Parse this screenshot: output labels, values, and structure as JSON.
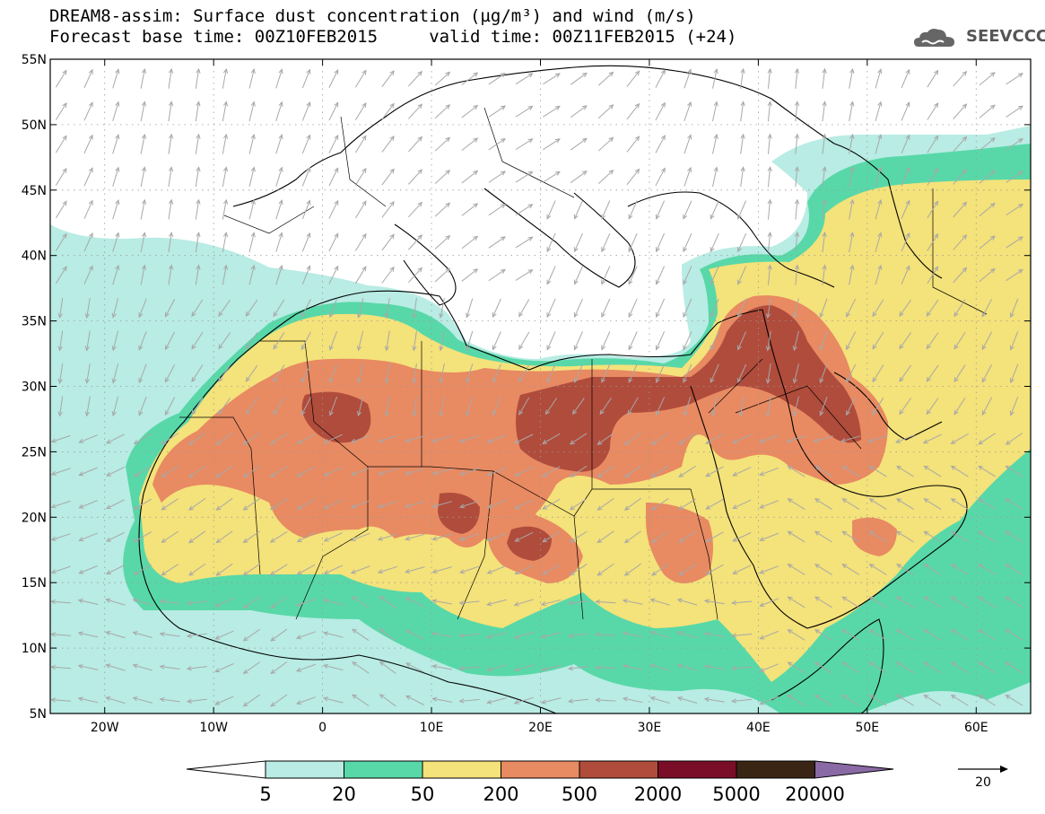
{
  "header": {
    "title_line1": "DREAM8-assim: Surface dust concentration (µg/m³) and wind (m/s)",
    "title_line2": "Forecast base time: 00Z10FEB2015     valid time: 00Z11FEB2015 (+24)",
    "logo_text": "SEEVCCC"
  },
  "map": {
    "lon_range": [
      -25,
      65
    ],
    "lat_range": [
      5,
      55
    ],
    "lon_ticks": [
      {
        "value": -20,
        "label": "20W"
      },
      {
        "value": -10,
        "label": "10W"
      },
      {
        "value": 0,
        "label": "0"
      },
      {
        "value": 10,
        "label": "10E"
      },
      {
        "value": 20,
        "label": "20E"
      },
      {
        "value": 30,
        "label": "30E"
      },
      {
        "value": 40,
        "label": "40E"
      },
      {
        "value": 50,
        "label": "50E"
      },
      {
        "value": 60,
        "label": "60E"
      }
    ],
    "lat_ticks": [
      {
        "value": 55,
        "label": "55N"
      },
      {
        "value": 50,
        "label": "50N"
      },
      {
        "value": 45,
        "label": "45N"
      },
      {
        "value": 40,
        "label": "40N"
      },
      {
        "value": 35,
        "label": "35N"
      },
      {
        "value": 30,
        "label": "30N"
      },
      {
        "value": 25,
        "label": "25N"
      },
      {
        "value": 20,
        "label": "20N"
      },
      {
        "value": 15,
        "label": "15N"
      },
      {
        "value": 10,
        "label": "10N"
      },
      {
        "value": 5,
        "label": "5N"
      }
    ],
    "colors": {
      "c5": "#b8ece4",
      "c20": "#58d8a8",
      "c50": "#f4e27a",
      "c200": "#e88a62",
      "c500": "#b04c3c",
      "c2000": "#7a0e28",
      "c5000": "#3a2414",
      "c20000": "#8a6aa4",
      "arrow": "#a8a8a8",
      "coast": "#000000"
    }
  },
  "colorbar": {
    "labels": [
      "5",
      "20",
      "50",
      "200",
      "500",
      "2000",
      "5000",
      "20000"
    ]
  },
  "wind_key": {
    "value_label": "20"
  }
}
